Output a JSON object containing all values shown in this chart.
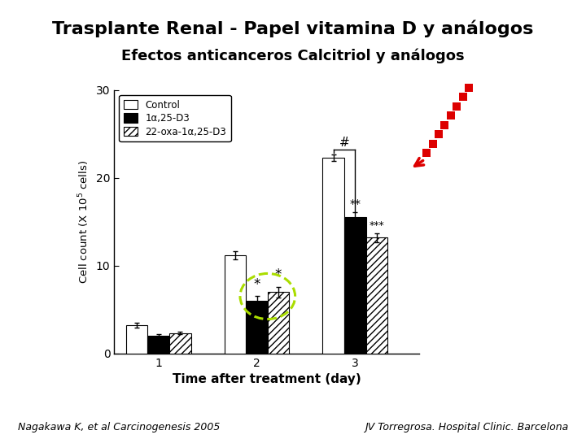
{
  "title": "Trasplante Renal - Papel vitamina D y análogos",
  "subtitle": "Efectos anticanceros Calcitriol y análogos",
  "subtitle_bg": "#40d8d8",
  "xlabel": "Time after treatment (day)",
  "ylabel": "Cell count (X 10$^5$ cells)",
  "ylim": [
    0,
    30
  ],
  "yticks": [
    0,
    10,
    20,
    30
  ],
  "xtick_labels": [
    "1",
    "2",
    "3"
  ],
  "control_values": [
    3.2,
    11.2,
    22.3
  ],
  "control_errors": [
    0.25,
    0.45,
    0.35
  ],
  "drug1_values": [
    2.0,
    6.0,
    15.5
  ],
  "drug1_errors": [
    0.15,
    0.55,
    0.55
  ],
  "drug2_values": [
    2.3,
    7.0,
    13.2
  ],
  "drug2_errors": [
    0.15,
    0.6,
    0.5
  ],
  "legend_labels": [
    "Control",
    "1α,25-D3",
    "22-oxa-1α,25-D3"
  ],
  "bar_width": 0.22,
  "footnote_left": "Nagakawa K, et al Carcinogenesis 2005",
  "footnote_right": "JV Torregrosa. Hospital Clinic. Barcelona",
  "background_color": "#ffffff",
  "green_ellipse_color": "#aadd00",
  "red_arrow_color": "#dd0000",
  "title_fontsize": 16,
  "subtitle_fontsize": 13
}
